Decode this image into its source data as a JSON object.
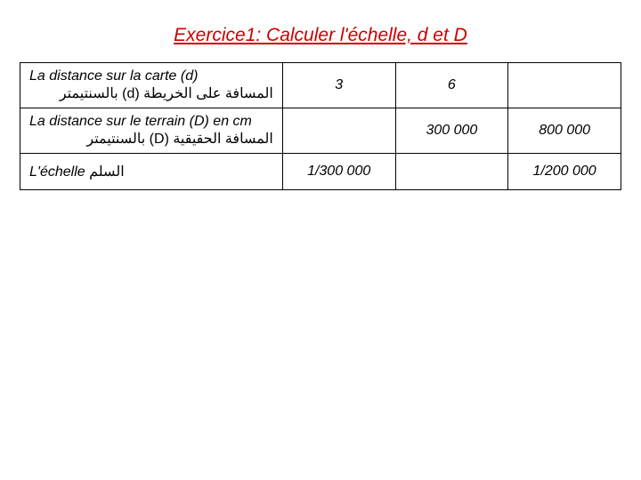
{
  "title": "Exercice1: Calculer l'échelle, d et D",
  "table": {
    "rows": {
      "d_label": "La distance sur la carte (d)",
      "d_arabic": "المسافة على الخريطة (d) بالسنتيمتر",
      "D_label": "La distance sur le terrain (D) en cm",
      "D_arabic": "المسافة الحقيقية (D) بالسنتيمتر",
      "scale_label": "L'échelle",
      "scale_arabic": "السلم"
    },
    "col1": {
      "d": "3",
      "D": "",
      "scale": "1/300 000"
    },
    "col2": {
      "d": "6",
      "D": "300 000",
      "scale": ""
    },
    "col3": {
      "d": "",
      "D": "800 000",
      "scale": "1/200 000"
    }
  },
  "colors": {
    "title": "#cc0000",
    "border": "#000000",
    "text": "#000000",
    "background": "#ffffff"
  }
}
